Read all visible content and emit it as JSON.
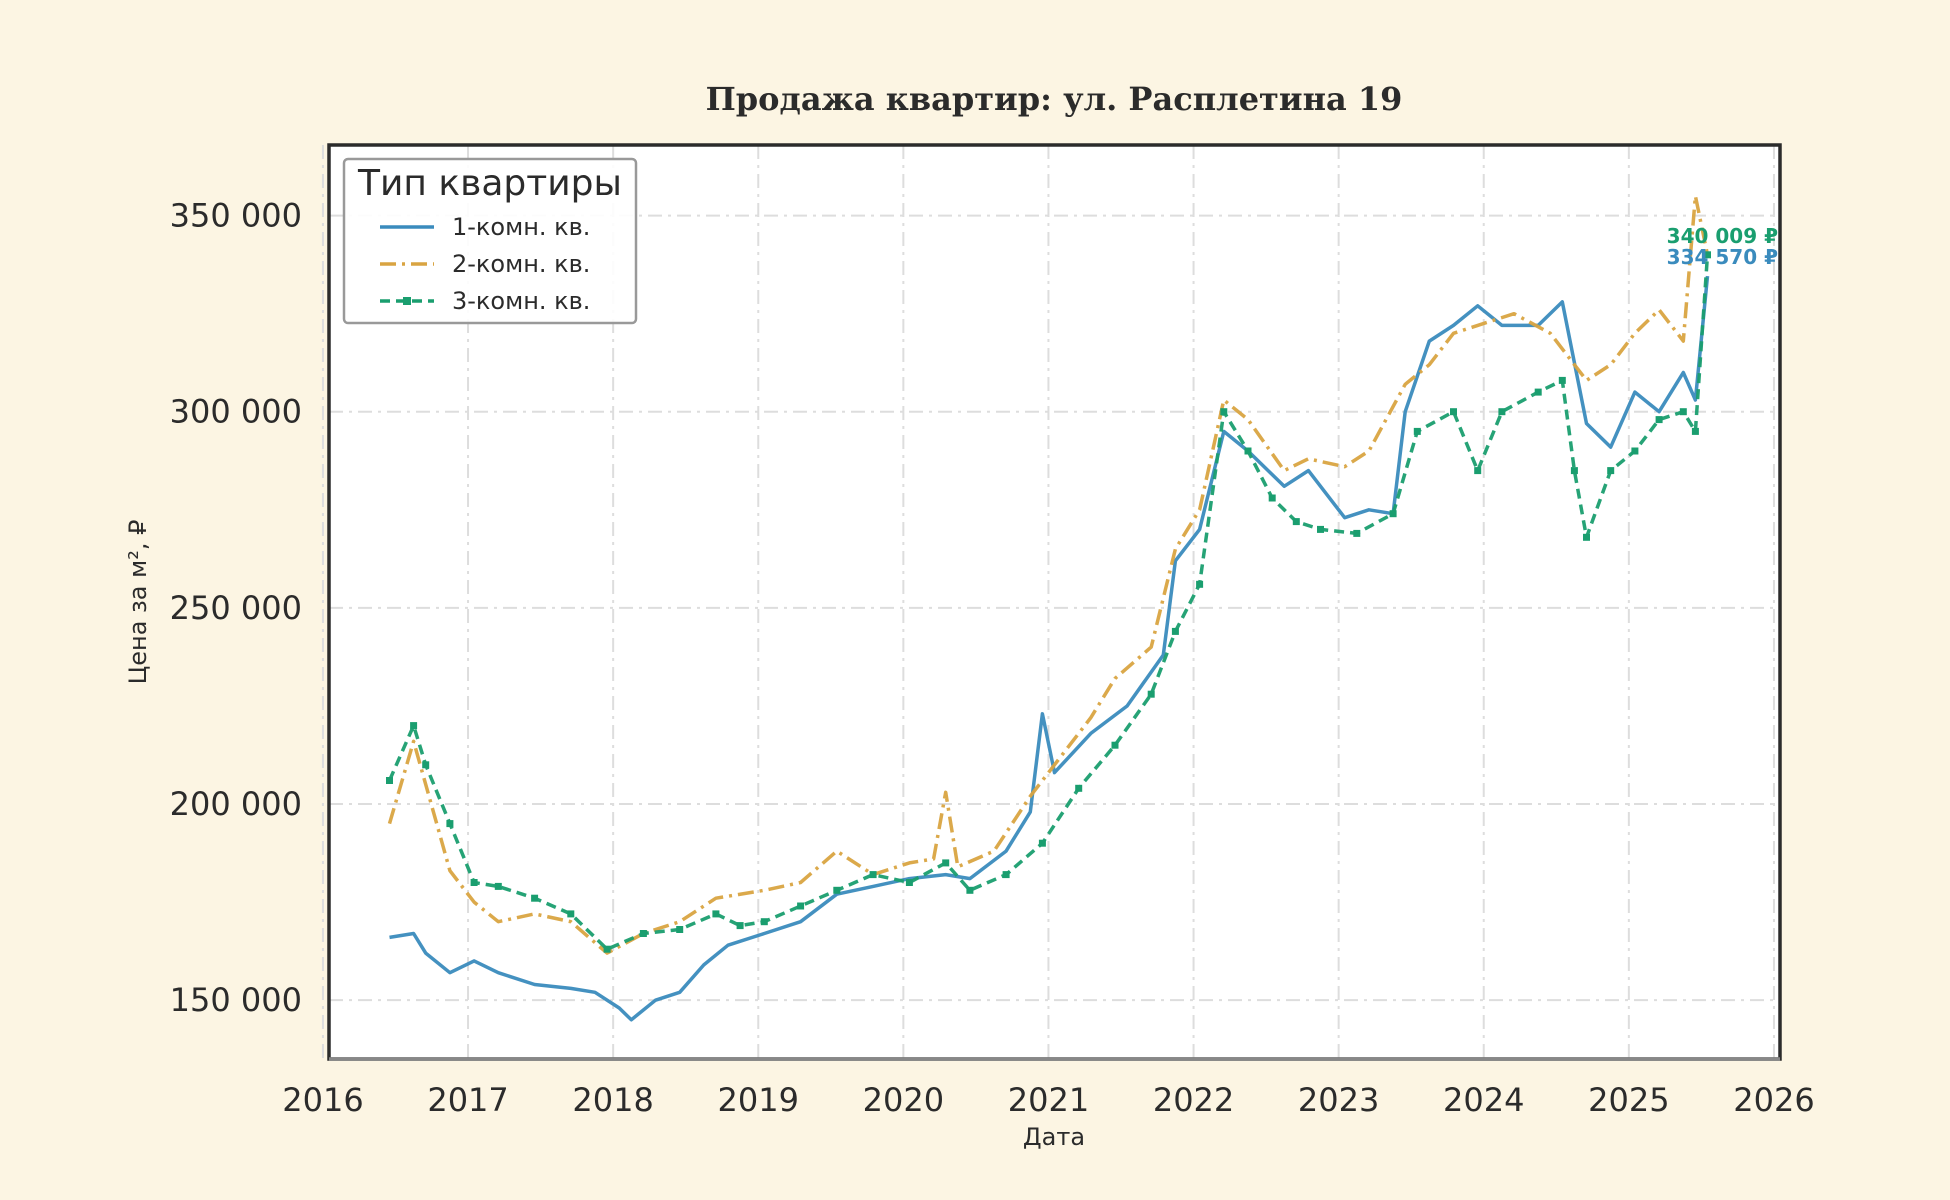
{
  "chart_data": {
    "type": "line",
    "title": "Продажа квартир: ул. Расплетина 19",
    "xlabel": "Дата",
    "ylabel": "Цена за м², ₽",
    "xlim": [
      "2016-01-01",
      "2026-01-01"
    ],
    "ylim": [
      135000,
      368000
    ],
    "x_ticks": [
      "2016",
      "2017",
      "2018",
      "2019",
      "2020",
      "2021",
      "2022",
      "2023",
      "2024",
      "2025",
      "2026"
    ],
    "y_ticks": [
      150000,
      200000,
      250000,
      300000,
      350000
    ],
    "y_tick_labels": [
      "150 000",
      "200 000",
      "250 000",
      "300 000",
      "350 000"
    ],
    "grid": true,
    "legend": {
      "title": "Тип квартиры",
      "placement": "top-left"
    },
    "series": [
      {
        "name": "1-комн. кв.",
        "color": "#3a8bbd",
        "style": "solid",
        "end_label": "334 570 ₽",
        "points": [
          [
            "2016-06",
            166000
          ],
          [
            "2016-08",
            167000
          ],
          [
            "2016-09",
            162000
          ],
          [
            "2016-11",
            157000
          ],
          [
            "2017-01",
            160000
          ],
          [
            "2017-03",
            157000
          ],
          [
            "2017-06",
            154000
          ],
          [
            "2017-09",
            153000
          ],
          [
            "2017-11",
            152000
          ],
          [
            "2018-01",
            148000
          ],
          [
            "2018-02",
            145000
          ],
          [
            "2018-04",
            150000
          ],
          [
            "2018-06",
            152000
          ],
          [
            "2018-08",
            159000
          ],
          [
            "2018-10",
            164000
          ],
          [
            "2019-01",
            167000
          ],
          [
            "2019-04",
            170000
          ],
          [
            "2019-07",
            177000
          ],
          [
            "2019-10",
            179000
          ],
          [
            "2020-01",
            181000
          ],
          [
            "2020-04",
            182000
          ],
          [
            "2020-06",
            181000
          ],
          [
            "2020-09",
            188000
          ],
          [
            "2020-11",
            198000
          ],
          [
            "2020-12",
            223000
          ],
          [
            "2021-01",
            208000
          ],
          [
            "2021-04",
            218000
          ],
          [
            "2021-07",
            225000
          ],
          [
            "2021-10",
            238000
          ],
          [
            "2021-11",
            262000
          ],
          [
            "2022-01",
            270000
          ],
          [
            "2022-03",
            295000
          ],
          [
            "2022-05",
            290000
          ],
          [
            "2022-08",
            281000
          ],
          [
            "2022-10",
            285000
          ],
          [
            "2023-01",
            273000
          ],
          [
            "2023-03",
            275000
          ],
          [
            "2023-05",
            274000
          ],
          [
            "2023-06",
            300000
          ],
          [
            "2023-08",
            318000
          ],
          [
            "2023-10",
            322000
          ],
          [
            "2023-12",
            327000
          ],
          [
            "2024-02",
            322000
          ],
          [
            "2024-05",
            322000
          ],
          [
            "2024-07",
            328000
          ],
          [
            "2024-09",
            297000
          ],
          [
            "2024-11",
            291000
          ],
          [
            "2025-01",
            305000
          ],
          [
            "2025-03",
            300000
          ],
          [
            "2025-05",
            310000
          ],
          [
            "2025-06",
            303000
          ],
          [
            "2025-07",
            334570
          ]
        ]
      },
      {
        "name": "2-комн. кв.",
        "color": "#d9a441",
        "style": "dashdot",
        "end_label": "",
        "points": [
          [
            "2016-06",
            195000
          ],
          [
            "2016-08",
            216000
          ],
          [
            "2016-09",
            205000
          ],
          [
            "2016-11",
            183000
          ],
          [
            "2017-01",
            175000
          ],
          [
            "2017-03",
            170000
          ],
          [
            "2017-06",
            172000
          ],
          [
            "2017-09",
            170000
          ],
          [
            "2017-12",
            162000
          ],
          [
            "2018-03",
            167000
          ],
          [
            "2018-06",
            170000
          ],
          [
            "2018-09",
            176000
          ],
          [
            "2019-01",
            178000
          ],
          [
            "2019-04",
            180000
          ],
          [
            "2019-07",
            188000
          ],
          [
            "2019-10",
            182000
          ],
          [
            "2020-01",
            185000
          ],
          [
            "2020-03",
            186000
          ],
          [
            "2020-04",
            203000
          ],
          [
            "2020-05",
            184000
          ],
          [
            "2020-08",
            188000
          ],
          [
            "2020-11",
            202000
          ],
          [
            "2021-01",
            210000
          ],
          [
            "2021-04",
            222000
          ],
          [
            "2021-06",
            232000
          ],
          [
            "2021-09",
            240000
          ],
          [
            "2021-11",
            265000
          ],
          [
            "2022-01",
            275000
          ],
          [
            "2022-03",
            303000
          ],
          [
            "2022-05",
            298000
          ],
          [
            "2022-08",
            285000
          ],
          [
            "2022-10",
            288000
          ],
          [
            "2023-01",
            286000
          ],
          [
            "2023-03",
            290000
          ],
          [
            "2023-06",
            307000
          ],
          [
            "2023-08",
            312000
          ],
          [
            "2023-10",
            320000
          ],
          [
            "2023-12",
            322000
          ],
          [
            "2024-03",
            325000
          ],
          [
            "2024-06",
            320000
          ],
          [
            "2024-09",
            308000
          ],
          [
            "2024-11",
            312000
          ],
          [
            "2025-01",
            320000
          ],
          [
            "2025-03",
            326000
          ],
          [
            "2025-05",
            318000
          ],
          [
            "2025-06",
            355000
          ],
          [
            "2025-07",
            340009
          ]
        ]
      },
      {
        "name": "3-комн. кв.",
        "color": "#1a9e6f",
        "style": "dashed-markers",
        "end_label": "340 009 ₽",
        "points": [
          [
            "2016-06",
            206000
          ],
          [
            "2016-08",
            220000
          ],
          [
            "2016-09",
            210000
          ],
          [
            "2016-11",
            195000
          ],
          [
            "2017-01",
            180000
          ],
          [
            "2017-03",
            179000
          ],
          [
            "2017-06",
            176000
          ],
          [
            "2017-09",
            172000
          ],
          [
            "2017-12",
            163000
          ],
          [
            "2018-03",
            167000
          ],
          [
            "2018-06",
            168000
          ],
          [
            "2018-09",
            172000
          ],
          [
            "2018-11",
            169000
          ],
          [
            "2019-01",
            170000
          ],
          [
            "2019-04",
            174000
          ],
          [
            "2019-07",
            178000
          ],
          [
            "2019-10",
            182000
          ],
          [
            "2020-01",
            180000
          ],
          [
            "2020-04",
            185000
          ],
          [
            "2020-06",
            178000
          ],
          [
            "2020-09",
            182000
          ],
          [
            "2020-12",
            190000
          ],
          [
            "2021-03",
            204000
          ],
          [
            "2021-06",
            215000
          ],
          [
            "2021-09",
            228000
          ],
          [
            "2021-11",
            244000
          ],
          [
            "2022-01",
            256000
          ],
          [
            "2022-03",
            300000
          ],
          [
            "2022-05",
            290000
          ],
          [
            "2022-07",
            278000
          ],
          [
            "2022-09",
            272000
          ],
          [
            "2022-11",
            270000
          ],
          [
            "2023-02",
            269000
          ],
          [
            "2023-05",
            274000
          ],
          [
            "2023-07",
            295000
          ],
          [
            "2023-10",
            300000
          ],
          [
            "2023-12",
            285000
          ],
          [
            "2024-02",
            300000
          ],
          [
            "2024-05",
            305000
          ],
          [
            "2024-07",
            308000
          ],
          [
            "2024-08",
            285000
          ],
          [
            "2024-09",
            268000
          ],
          [
            "2024-11",
            285000
          ],
          [
            "2025-01",
            290000
          ],
          [
            "2025-03",
            298000
          ],
          [
            "2025-05",
            300000
          ],
          [
            "2025-06",
            295000
          ],
          [
            "2025-07",
            340009
          ]
        ]
      }
    ]
  }
}
